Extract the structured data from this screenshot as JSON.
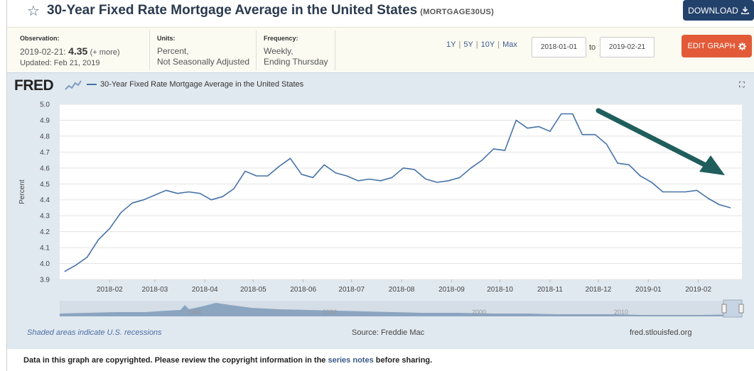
{
  "header": {
    "title": "30-Year Fixed Rate Mortgage Average in the United States",
    "series_id": "(MORTGAGE30US)",
    "download_label": "DOWNLOAD"
  },
  "info": {
    "observation_label": "Observation:",
    "observation_date": "2019-02-21:",
    "observation_value": "4.35",
    "observation_more": "(+ more)",
    "updated": "Updated: Feb 21, 2019",
    "units_label": "Units:",
    "units_line1": "Percent,",
    "units_line2": "Not Seasonally Adjusted",
    "frequency_label": "Frequency:",
    "frequency_line1": "Weekly,",
    "frequency_line2": "Ending Thursday"
  },
  "range": {
    "options": [
      "1Y",
      "5Y",
      "10Y",
      "Max"
    ],
    "from": "2018-01-01",
    "to_label": "to",
    "to": "2019-02-21",
    "edit_label": "EDIT GRAPH"
  },
  "graph": {
    "logo": "FRED",
    "legend": "30-Year Fixed Rate Mortgage Average in the United States",
    "recession_note": "Shaded areas indicate U.S. recessions",
    "source": "Source: Freddie Mac",
    "site": "fred.stlouisfed.org"
  },
  "copyright": {
    "prefix": "Data in this graph are copyrighted. Please review the copyright information in the ",
    "link": "series notes",
    "suffix": " before sharing."
  },
  "colors": {
    "line": "#4572a7",
    "arrow": "#1f5e5c",
    "panel": "#e1e9f0"
  },
  "chart_data": {
    "type": "line",
    "ylabel": "Percent",
    "ylim": [
      3.9,
      5.0
    ],
    "yticks": [
      3.9,
      4.0,
      4.1,
      4.2,
      4.3,
      4.4,
      4.5,
      4.6,
      4.7,
      4.8,
      4.9,
      5.0
    ],
    "xlim": [
      "2018-01-01",
      "2019-02-28"
    ],
    "xticks": [
      "2018-02",
      "2018-03",
      "2018-04",
      "2018-05",
      "2018-06",
      "2018-07",
      "2018-08",
      "2018-09",
      "2018-10",
      "2018-11",
      "2018-12",
      "2019-01",
      "2019-02"
    ],
    "navigator_labels": [
      "1980",
      "1990",
      "2000",
      "2010"
    ],
    "series": [
      {
        "name": "30-Year Fixed Rate Mortgage Average in the United States",
        "x": [
          "2018-01-04",
          "2018-01-11",
          "2018-01-18",
          "2018-01-25",
          "2018-02-01",
          "2018-02-08",
          "2018-02-15",
          "2018-02-22",
          "2018-03-01",
          "2018-03-08",
          "2018-03-15",
          "2018-03-22",
          "2018-03-29",
          "2018-04-05",
          "2018-04-12",
          "2018-04-19",
          "2018-04-26",
          "2018-05-03",
          "2018-05-10",
          "2018-05-17",
          "2018-05-24",
          "2018-05-31",
          "2018-06-07",
          "2018-06-14",
          "2018-06-21",
          "2018-06-28",
          "2018-07-05",
          "2018-07-12",
          "2018-07-19",
          "2018-07-26",
          "2018-08-02",
          "2018-08-09",
          "2018-08-16",
          "2018-08-23",
          "2018-08-30",
          "2018-09-06",
          "2018-09-13",
          "2018-09-20",
          "2018-09-27",
          "2018-10-04",
          "2018-10-11",
          "2018-10-18",
          "2018-10-25",
          "2018-11-01",
          "2018-11-08",
          "2018-11-15",
          "2018-11-21",
          "2018-11-29",
          "2018-12-06",
          "2018-12-13",
          "2018-12-20",
          "2018-12-27",
          "2019-01-03",
          "2019-01-10",
          "2019-01-17",
          "2019-01-24",
          "2019-01-31",
          "2019-02-07",
          "2019-02-14",
          "2019-02-21"
        ],
        "values": [
          3.95,
          3.99,
          4.04,
          4.15,
          4.22,
          4.32,
          4.38,
          4.4,
          4.43,
          4.46,
          4.44,
          4.45,
          4.44,
          4.4,
          4.42,
          4.47,
          4.58,
          4.55,
          4.55,
          4.61,
          4.66,
          4.56,
          4.54,
          4.62,
          4.57,
          4.55,
          4.52,
          4.53,
          4.52,
          4.54,
          4.6,
          4.59,
          4.53,
          4.51,
          4.52,
          4.54,
          4.6,
          4.65,
          4.72,
          4.71,
          4.9,
          4.85,
          4.86,
          4.83,
          4.94,
          4.94,
          4.81,
          4.81,
          4.75,
          4.63,
          4.62,
          4.55,
          4.51,
          4.45,
          4.45,
          4.45,
          4.46,
          4.41,
          4.37,
          4.35
        ]
      }
    ]
  }
}
